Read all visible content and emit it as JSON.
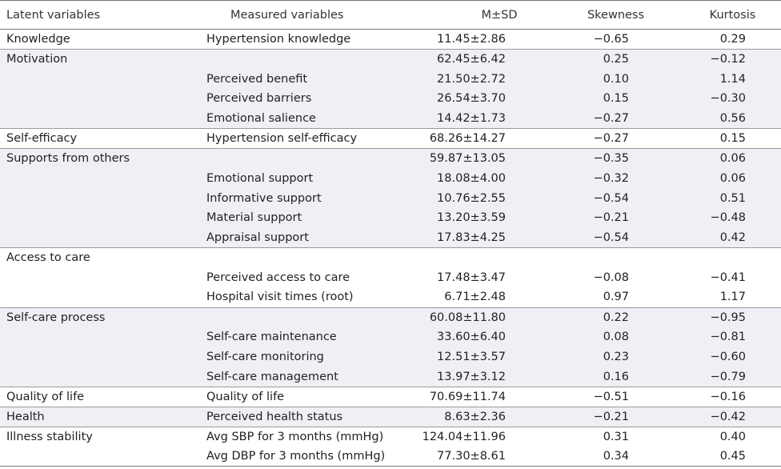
{
  "table": {
    "headers": {
      "latent": "Latent variables",
      "measured": "Measured variables",
      "msd": "M±SD",
      "skewness": "Skewness",
      "kurtosis": "Kurtosis"
    },
    "rows": [
      {
        "latent": "Knowledge",
        "measured": "Hypertension knowledge",
        "msd": "11.45±2.86",
        "skewness": "−0.65",
        "kurtosis": "0.29",
        "group_start": true,
        "shaded": false
      },
      {
        "latent": "Motivation",
        "measured": "",
        "msd": "62.45±6.42",
        "skewness": "0.25",
        "kurtosis": "−0.12",
        "group_start": true,
        "shaded": true
      },
      {
        "latent": "",
        "measured": "Perceived benefit",
        "msd": "21.50±2.72",
        "skewness": "0.10",
        "kurtosis": "1.14",
        "group_start": false,
        "shaded": true
      },
      {
        "latent": "",
        "measured": "Perceived barriers",
        "msd": "26.54±3.70",
        "skewness": "0.15",
        "kurtosis": "−0.30",
        "group_start": false,
        "shaded": true
      },
      {
        "latent": "",
        "measured": "Emotional salience",
        "msd": "14.42±1.73",
        "skewness": "−0.27",
        "kurtosis": "0.56",
        "group_start": false,
        "shaded": true
      },
      {
        "latent": "Self-efficacy",
        "measured": "Hypertension self-efficacy",
        "msd": "68.26±14.27",
        "skewness": "−0.27",
        "kurtosis": "0.15",
        "group_start": true,
        "shaded": false
      },
      {
        "latent": "Supports from others",
        "measured": "",
        "msd": "59.87±13.05",
        "skewness": "−0.35",
        "kurtosis": "0.06",
        "group_start": true,
        "shaded": true
      },
      {
        "latent": "",
        "measured": "Emotional support",
        "msd": "18.08±4.00",
        "skewness": "−0.32",
        "kurtosis": "0.06",
        "group_start": false,
        "shaded": true
      },
      {
        "latent": "",
        "measured": "Informative support",
        "msd": "10.76±2.55",
        "skewness": "−0.54",
        "kurtosis": "0.51",
        "group_start": false,
        "shaded": true
      },
      {
        "latent": "",
        "measured": "Material support",
        "msd": "13.20±3.59",
        "skewness": "−0.21",
        "kurtosis": "−0.48",
        "group_start": false,
        "shaded": true
      },
      {
        "latent": "",
        "measured": "Appraisal support",
        "msd": "17.83±4.25",
        "skewness": "−0.54",
        "kurtosis": "0.42",
        "group_start": false,
        "shaded": true
      },
      {
        "latent": "Access to care",
        "measured": "",
        "msd": "",
        "skewness": "",
        "kurtosis": "",
        "group_start": true,
        "shaded": false
      },
      {
        "latent": "",
        "measured": "Perceived access to care",
        "msd": "17.48±3.47",
        "skewness": "−0.08",
        "kurtosis": "−0.41",
        "group_start": false,
        "shaded": false
      },
      {
        "latent": "",
        "measured": "Hospital visit times (root)",
        "msd": "6.71±2.48",
        "skewness": "0.97",
        "kurtosis": "1.17",
        "group_start": false,
        "shaded": false
      },
      {
        "latent": "Self-care process",
        "measured": "",
        "msd": "60.08±11.80",
        "skewness": "0.22",
        "kurtosis": "−0.95",
        "group_start": true,
        "shaded": true
      },
      {
        "latent": "",
        "measured": "Self-care maintenance",
        "msd": "33.60±6.40",
        "skewness": "0.08",
        "kurtosis": "−0.81",
        "group_start": false,
        "shaded": true
      },
      {
        "latent": "",
        "measured": "Self-care monitoring",
        "msd": "12.51±3.57",
        "skewness": "0.23",
        "kurtosis": "−0.60",
        "group_start": false,
        "shaded": true
      },
      {
        "latent": "",
        "measured": "Self-care management",
        "msd": "13.97±3.12",
        "skewness": "0.16",
        "kurtosis": "−0.79",
        "group_start": false,
        "shaded": true
      },
      {
        "latent": "Quality of life",
        "measured": "Quality of life",
        "msd": "70.69±11.74",
        "skewness": "−0.51",
        "kurtosis": "−0.16",
        "group_start": true,
        "shaded": false
      },
      {
        "latent": "Health",
        "measured": "Perceived health status",
        "msd": "8.63±2.36",
        "skewness": "−0.21",
        "kurtosis": "−0.42",
        "group_start": true,
        "shaded": true
      },
      {
        "latent": "Illness stability",
        "measured": "Avg SBP for 3 months (mmHg)",
        "msd": "124.04±11.96",
        "skewness": "0.31",
        "kurtosis": "0.40",
        "group_start": true,
        "shaded": false
      },
      {
        "latent": "",
        "measured": "Avg DBP for 3 months (mmHg)",
        "msd": "77.30±8.61",
        "skewness": "0.34",
        "kurtosis": "0.45",
        "group_start": false,
        "shaded": false
      }
    ]
  }
}
